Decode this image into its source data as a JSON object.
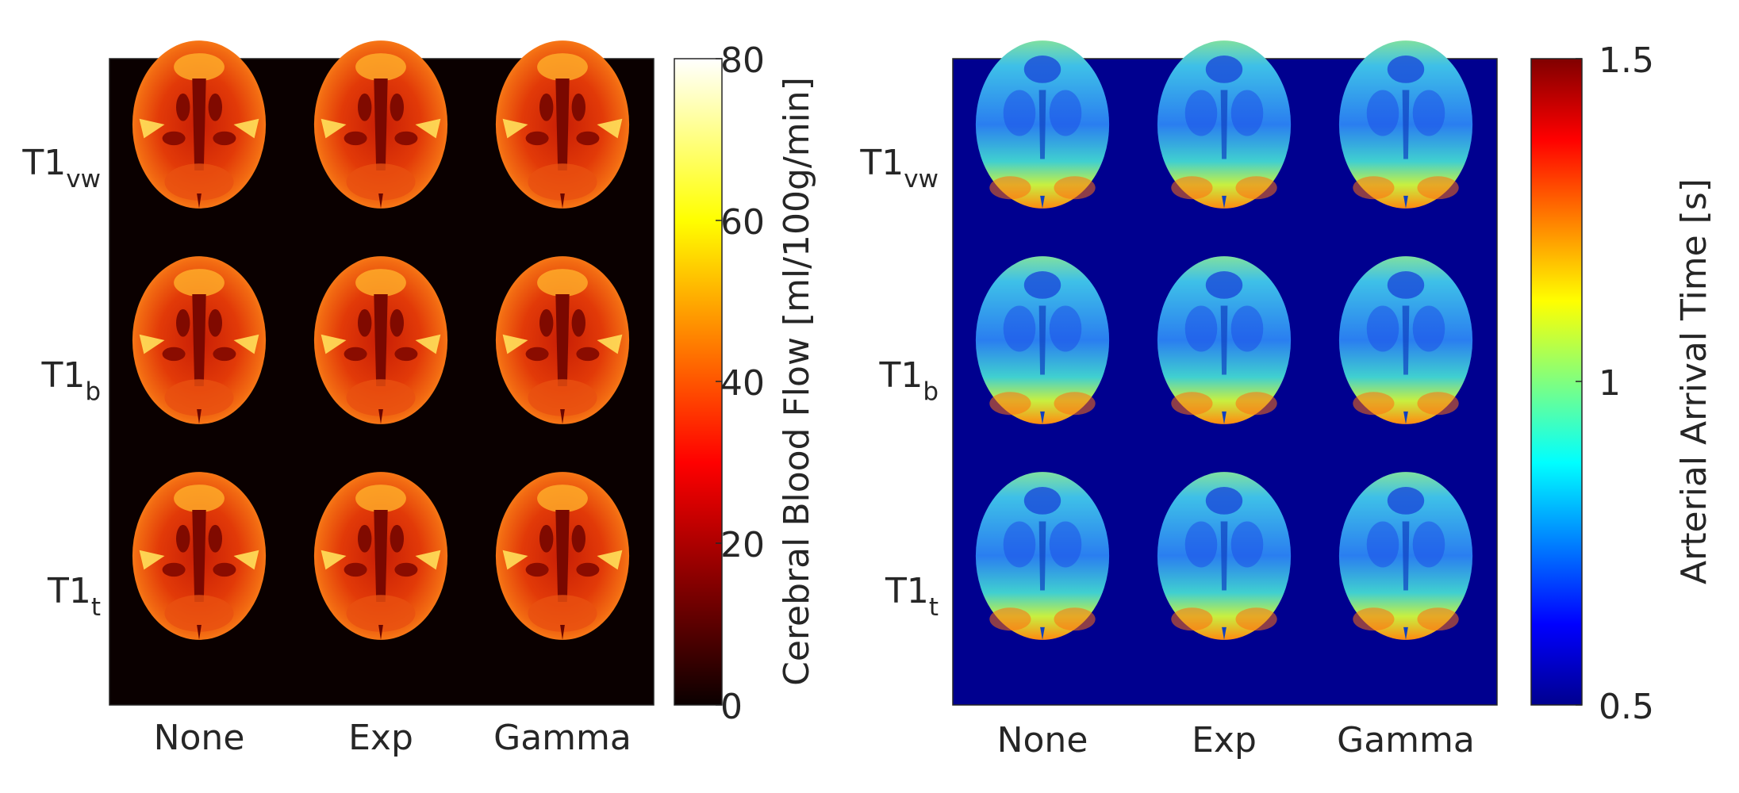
{
  "chart_data": [
    {
      "type": "heatmap",
      "rows": [
        "T1vw",
        "T1b",
        "T1t"
      ],
      "row_labels": [
        {
          "main": "T1",
          "sub": "vw"
        },
        {
          "main": "T1",
          "sub": "b"
        },
        {
          "main": "T1",
          "sub": "t"
        }
      ],
      "columns": [
        "None",
        "Exp",
        "Gamma"
      ],
      "colormap": "hot",
      "background_color": "#0a0000",
      "colorbar": {
        "label": "Cerebral Blood Flow [ml/100g/min]",
        "range": [
          0,
          80
        ],
        "ticks": [
          "0",
          "20",
          "40",
          "60",
          "80"
        ]
      },
      "values": [
        [
          35,
          35,
          33
        ],
        [
          33,
          33,
          33
        ],
        [
          37,
          38,
          37
        ]
      ]
    },
    {
      "type": "heatmap",
      "rows": [
        "T1vw",
        "T1b",
        "T1t"
      ],
      "row_labels": [
        {
          "main": "T1",
          "sub": "vw"
        },
        {
          "main": "T1",
          "sub": "b"
        },
        {
          "main": "T1",
          "sub": "t"
        }
      ],
      "columns": [
        "None",
        "Exp",
        "Gamma"
      ],
      "colormap": "jet",
      "background_color": "#00008f",
      "colorbar": {
        "label": "Arterial Arrival Time [s]",
        "range": [
          0.5,
          1.5
        ],
        "ticks": [
          "0.5",
          "1",
          "1.5"
        ]
      },
      "values": [
        [
          0.95,
          0.92,
          0.88
        ],
        [
          0.95,
          0.92,
          0.9
        ],
        [
          0.95,
          0.92,
          0.9
        ]
      ]
    }
  ]
}
